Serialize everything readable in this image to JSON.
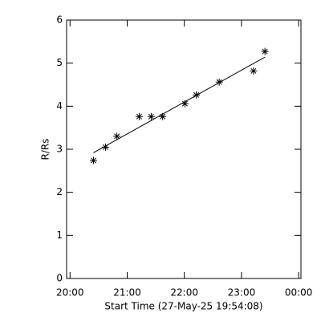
{
  "chart_data": {
    "type": "scatter",
    "xlabel": "Start Time (27-May-25 19:54:08)",
    "ylabel": "R/Rs",
    "x": [
      20.41,
      20.62,
      20.82,
      21.21,
      21.42,
      21.62,
      22.01,
      22.21,
      22.61,
      23.21,
      23.41
    ],
    "values": [
      2.74,
      3.05,
      3.3,
      3.76,
      3.76,
      3.76,
      4.06,
      4.26,
      4.56,
      4.82,
      5.27
    ],
    "fit": {
      "x": [
        20.41,
        23.41
      ],
      "values": [
        2.92,
        5.14
      ]
    },
    "color": "#000000",
    "xlim": [
      19.94,
      24.04
    ],
    "xticks": [
      {
        "value": 20,
        "label": "20:00"
      },
      {
        "value": 21,
        "label": "21:00"
      },
      {
        "value": 22,
        "label": "22:00"
      },
      {
        "value": 23,
        "label": "23:00"
      },
      {
        "value": 24,
        "label": "00:00"
      }
    ],
    "ylim": [
      0,
      6
    ],
    "yticks": [
      0,
      1,
      2,
      3,
      4,
      5,
      6
    ]
  }
}
